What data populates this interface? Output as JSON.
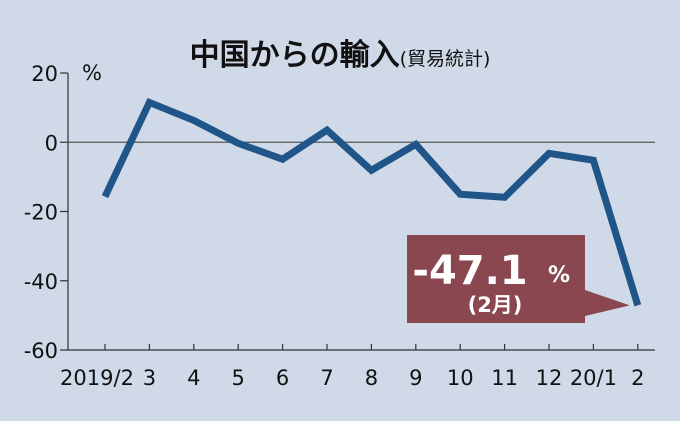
{
  "chart_data": {
    "type": "line",
    "title": "中国からの輸入",
    "subtitle": "(貿易統計)",
    "ylabel": "%",
    "categories": [
      "2019/2",
      "3",
      "4",
      "5",
      "6",
      "7",
      "8",
      "9",
      "10",
      "11",
      "12",
      "20/1",
      "2"
    ],
    "values": [
      -15.7,
      11.5,
      6.3,
      -0.3,
      -4.9,
      3.5,
      -8.1,
      -0.6,
      -15.0,
      -15.9,
      -3.2,
      -5.2,
      -47.1
    ],
    "yticks": [
      20,
      0,
      -20,
      -40,
      -60
    ],
    "ylim": [
      -60,
      20
    ],
    "grid": false,
    "reference_line": 0,
    "line_color": "#1f5588",
    "annotation": {
      "value": "-47.1",
      "unit": "%",
      "label": "(2月)",
      "color": "#8a4750",
      "target": "2"
    }
  }
}
